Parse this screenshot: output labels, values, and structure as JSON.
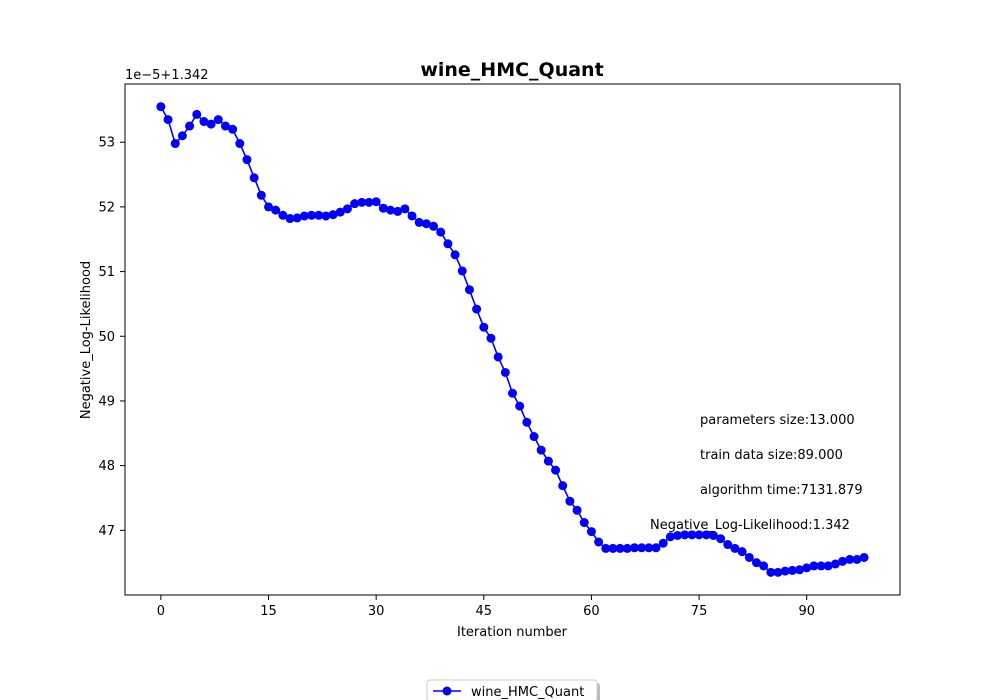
{
  "chart_data": {
    "type": "line",
    "title": "wine_HMC_Quant",
    "xlabel": "Iteration number",
    "ylabel": "Negative_Log-Likelihood",
    "y_offset_label": "1e−5+1.342",
    "xlim": [
      -5,
      103
    ],
    "ylim": [
      46.0,
      53.9
    ],
    "xticks": [
      0,
      15,
      30,
      45,
      60,
      75,
      90
    ],
    "yticks": [
      47,
      48,
      49,
      50,
      51,
      52,
      53
    ],
    "legend_position": "lower-center-outside",
    "grid": false,
    "annotations": [
      "parameters size:13.000",
      "train data size:89.000",
      "algorithm time:7131.879",
      "Negative_Log-Likelihood:1.342"
    ],
    "series": [
      {
        "name": "wine_HMC_Quant",
        "color": "#0000ff",
        "marker": "circle",
        "x": [
          0,
          1,
          2,
          3,
          4,
          5,
          6,
          7,
          8,
          9,
          10,
          11,
          12,
          13,
          14,
          15,
          16,
          17,
          18,
          19,
          20,
          21,
          22,
          23,
          24,
          25,
          26,
          27,
          28,
          29,
          30,
          31,
          32,
          33,
          34,
          35,
          36,
          37,
          38,
          39,
          40,
          41,
          42,
          43,
          44,
          45,
          46,
          47,
          48,
          49,
          50,
          51,
          52,
          53,
          54,
          55,
          56,
          57,
          58,
          59,
          60,
          61,
          62,
          63,
          64,
          65,
          66,
          67,
          68,
          69,
          70,
          71,
          72,
          73,
          74,
          75,
          76,
          77,
          78,
          79,
          80,
          81,
          82,
          83,
          84,
          85,
          86,
          87,
          88,
          89,
          90,
          91,
          92,
          93,
          94,
          95,
          96,
          97,
          98
        ],
        "y": [
          53.55,
          53.35,
          52.98,
          53.1,
          53.25,
          53.43,
          53.32,
          53.28,
          53.35,
          53.25,
          53.2,
          52.98,
          52.73,
          52.45,
          52.18,
          52.0,
          51.95,
          51.87,
          51.82,
          51.83,
          51.86,
          51.87,
          51.87,
          51.86,
          51.88,
          51.92,
          51.97,
          52.05,
          52.07,
          52.07,
          52.08,
          51.98,
          51.95,
          51.93,
          51.97,
          51.86,
          51.76,
          51.74,
          51.7,
          51.61,
          51.43,
          51.26,
          51.01,
          50.72,
          50.42,
          50.14,
          49.97,
          49.68,
          49.44,
          49.12,
          48.92,
          48.67,
          48.45,
          48.24,
          48.07,
          47.93,
          47.69,
          47.45,
          47.31,
          47.12,
          46.98,
          46.82,
          46.72,
          46.72,
          46.72,
          46.72,
          46.73,
          46.73,
          46.73,
          46.73,
          46.8,
          46.9,
          46.92,
          46.93,
          46.93,
          46.93,
          46.93,
          46.92,
          46.87,
          46.78,
          46.72,
          46.67,
          46.58,
          46.5,
          46.45,
          46.35,
          46.35,
          46.37,
          46.38,
          46.39,
          46.42,
          46.45,
          46.45,
          46.45,
          46.48,
          46.52,
          46.55,
          46.55,
          46.58
        ]
      }
    ]
  }
}
